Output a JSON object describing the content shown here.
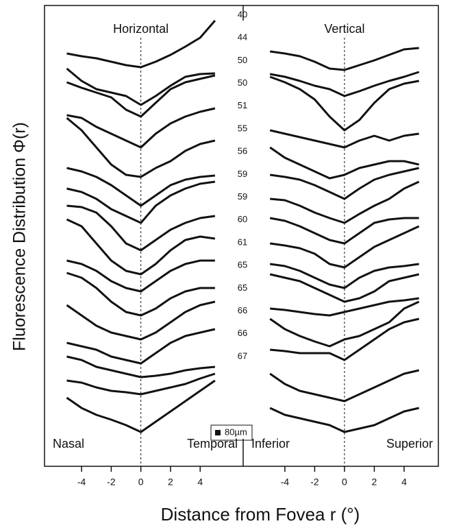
{
  "chart_data": {
    "type": "line",
    "y_label": "Fluorescence Distribution Φ(r)",
    "x_label": "Distance from Fovea r (°)",
    "scale_label": "80µm",
    "ylim": [
      20,
      692
    ],
    "x": [
      -5,
      -4,
      -3,
      -2,
      -1,
      0,
      1,
      2,
      3,
      4,
      5
    ],
    "age_labels": [
      "40",
      "44",
      "50",
      "50",
      "51",
      "55",
      "56",
      "59",
      "59",
      "60",
      "61",
      "65",
      "65",
      "66",
      "66",
      "67"
    ],
    "color": "#111111",
    "panels": [
      {
        "title": "Horizontal",
        "left_label": "Nasal",
        "right_label": "Temporal",
        "xlim": [
          -6.5,
          6.9
        ],
        "xticks": [
          -4,
          -2,
          0,
          2,
          4
        ],
        "series": [
          {
            "values": [
              622,
              618,
              615,
              610,
              605,
              602,
              610,
              620,
              632,
              645,
              670
            ]
          },
          {
            "values": [
              600,
              582,
              570,
              565,
              560,
              547,
              560,
              575,
              588,
              592,
              593
            ]
          },
          {
            "values": [
              580,
              572,
              565,
              558,
              540,
              530,
              550,
              570,
              580,
              585,
              590
            ]
          },
          {
            "values": [
              532,
              528,
              515,
              505,
              495,
              485,
              505,
              520,
              530,
              537,
              542
            ]
          },
          {
            "values": [
              528,
              510,
              485,
              460,
              445,
              442,
              455,
              465,
              480,
              490,
              495
            ]
          },
          {
            "values": [
              455,
              450,
              442,
              430,
              415,
              400,
              415,
              430,
              438,
              442,
              444
            ]
          },
          {
            "values": [
              425,
              420,
              410,
              395,
              385,
              375,
              400,
              415,
              425,
              432,
              435
            ]
          },
          {
            "values": [
              400,
              398,
              390,
              370,
              345,
              335,
              350,
              365,
              375,
              382,
              385
            ]
          },
          {
            "values": [
              380,
              370,
              345,
              320,
              305,
              300,
              315,
              335,
              350,
              355,
              352
            ]
          },
          {
            "values": [
              320,
              315,
              305,
              290,
              280,
              275,
              290,
              305,
              315,
              320,
              320
            ]
          },
          {
            "values": [
              302,
              295,
              280,
              260,
              245,
              240,
              250,
              265,
              275,
              280,
              280
            ]
          },
          {
            "values": [
              255,
              240,
              225,
              215,
              210,
              205,
              215,
              230,
              245,
              255,
              260
            ]
          },
          {
            "values": [
              200,
              195,
              190,
              180,
              175,
              170,
              185,
              200,
              210,
              215,
              220
            ]
          },
          {
            "values": [
              180,
              175,
              165,
              160,
              155,
              150,
              152,
              155,
              160,
              163,
              165
            ]
          },
          {
            "values": [
              145,
              142,
              135,
              130,
              128,
              125,
              130,
              135,
              140,
              148,
              155
            ]
          },
          {
            "values": [
              120,
              105,
              95,
              88,
              80,
              70,
              85,
              100,
              115,
              130,
              145
            ]
          }
        ]
      },
      {
        "title": "Vertical",
        "left_label": "Inferior",
        "right_label": "Superior",
        "xlim": [
          -6.8,
          6.3
        ],
        "xticks": [
          -4,
          -2,
          0,
          2,
          4
        ],
        "series": [
          {
            "values": [
              625,
              622,
              618,
              610,
              600,
              598,
              605,
              612,
              620,
              628,
              630
            ]
          },
          {
            "values": [
              592,
              588,
              582,
              575,
              570,
              560,
              567,
              575,
              582,
              588,
              595
            ]
          },
          {
            "values": [
              588,
              580,
              570,
              555,
              530,
              510,
              525,
              550,
              570,
              578,
              582
            ]
          },
          {
            "values": [
              510,
              505,
              500,
              495,
              490,
              485,
              495,
              502,
              495,
              502,
              505
            ]
          },
          {
            "values": [
              485,
              470,
              460,
              450,
              440,
              445,
              455,
              460,
              465,
              465,
              460
            ]
          },
          {
            "values": [
              445,
              442,
              438,
              430,
              420,
              410,
              425,
              438,
              445,
              450,
              455
            ]
          },
          {
            "values": [
              410,
              408,
              400,
              390,
              382,
              375,
              388,
              400,
              410,
              425,
              435
            ]
          },
          {
            "values": [
              382,
              378,
              370,
              360,
              350,
              345,
              360,
              375,
              380,
              382,
              382
            ]
          },
          {
            "values": [
              345,
              342,
              338,
              330,
              315,
              310,
              325,
              340,
              350,
              360,
              370
            ]
          },
          {
            "values": [
              315,
              312,
              305,
              295,
              285,
              280,
              295,
              305,
              310,
              312,
              315
            ]
          },
          {
            "values": [
              300,
              295,
              290,
              280,
              270,
              260,
              265,
              275,
              290,
              295,
              300
            ]
          },
          {
            "values": [
              250,
              248,
              245,
              242,
              240,
              245,
              250,
              255,
              260,
              262,
              265
            ]
          },
          {
            "values": [
              235,
              220,
              210,
              202,
              195,
              205,
              210,
              220,
              230,
              250,
              260
            ]
          },
          {
            "values": [
              190,
              188,
              185,
              185,
              185,
              175,
              190,
              205,
              220,
              230,
              235
            ]
          },
          {
            "values": [
              155,
              140,
              130,
              125,
              120,
              115,
              125,
              135,
              145,
              155,
              160
            ]
          },
          {
            "values": [
              105,
              95,
              90,
              85,
              80,
              70,
              75,
              80,
              90,
              100,
              105
            ]
          }
        ]
      }
    ]
  }
}
